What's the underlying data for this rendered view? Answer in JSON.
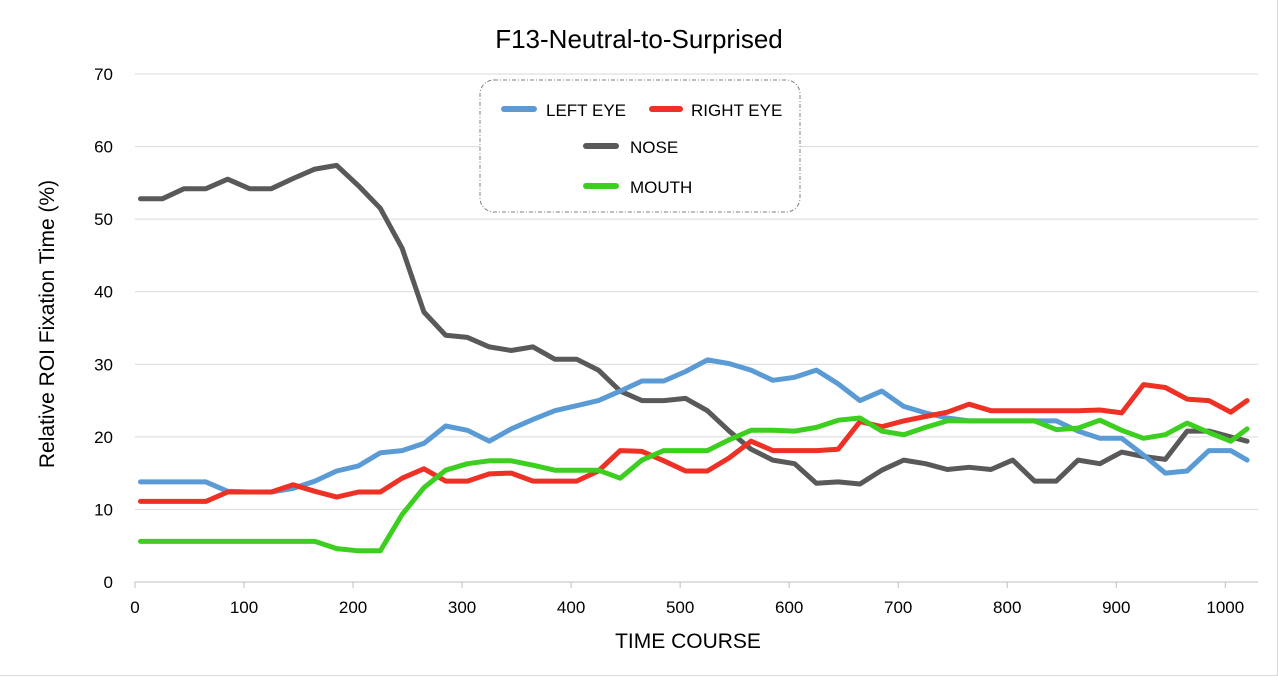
{
  "chart_data": {
    "type": "line",
    "title": "F13-Neutral-to-Surprised",
    "xlabel": "TIME  COURSE",
    "ylabel": "Relative  ROI  Fixation  Time  (%)",
    "xlim": [
      0,
      1030
    ],
    "ylim": [
      0,
      70
    ],
    "xticks": [
      0,
      100,
      200,
      300,
      400,
      500,
      600,
      700,
      800,
      900,
      1000
    ],
    "yticks": [
      0,
      10,
      20,
      30,
      40,
      50,
      60,
      70
    ],
    "grid": true,
    "legend_position": "top-center",
    "x": [
      5,
      25,
      45,
      65,
      85,
      105,
      125,
      145,
      165,
      185,
      205,
      225,
      245,
      265,
      285,
      305,
      325,
      345,
      365,
      385,
      405,
      425,
      445,
      465,
      485,
      505,
      525,
      545,
      565,
      585,
      605,
      625,
      645,
      665,
      685,
      705,
      725,
      745,
      765,
      785,
      805,
      825,
      845,
      865,
      885,
      905,
      925,
      945,
      965,
      985,
      1005,
      1020
    ],
    "series": [
      {
        "name": "LEFT EYE",
        "color": "#5b9bd5",
        "values": [
          13.8,
          13.8,
          13.8,
          13.8,
          12.5,
          12.4,
          12.4,
          12.9,
          13.9,
          15.3,
          16,
          17.8,
          18.1,
          19.1,
          21.5,
          20.9,
          19.4,
          21.1,
          22.4,
          23.6,
          24.3,
          25,
          26.3,
          27.7,
          27.7,
          29,
          30.6,
          30.1,
          29.2,
          27.8,
          28.2,
          29.2,
          27.3,
          25,
          26.3,
          24.2,
          23.3,
          22.6,
          22.2,
          22.2,
          22.2,
          22.2,
          22.2,
          20.8,
          19.8,
          19.8,
          17.5,
          15,
          15.3,
          18.1,
          18.1,
          16.8
        ]
      },
      {
        "name": "RIGHT EYE",
        "color": "#ee3124",
        "values": [
          11.1,
          11.1,
          11.1,
          11.1,
          12.4,
          12.4,
          12.4,
          13.4,
          12.5,
          11.7,
          12.4,
          12.4,
          14.3,
          15.6,
          13.9,
          13.9,
          14.9,
          15,
          13.9,
          13.9,
          13.9,
          15.3,
          18.1,
          18,
          16.7,
          15.3,
          15.3,
          17.1,
          19.4,
          18.1,
          18.1,
          18.1,
          18.3,
          22.1,
          21.4,
          22.2,
          22.8,
          23.4,
          24.5,
          23.6,
          23.6,
          23.6,
          23.6,
          23.6,
          23.7,
          23.3,
          27.2,
          26.8,
          25.2,
          25,
          23.4,
          25
        ]
      },
      {
        "name": "NOSE",
        "color": "#595959",
        "values": [
          52.8,
          52.8,
          54.2,
          54.2,
          55.5,
          54.2,
          54.2,
          55.6,
          56.9,
          57.4,
          54.6,
          51.5,
          46,
          37.2,
          34,
          33.7,
          32.4,
          31.9,
          32.4,
          30.7,
          30.7,
          29.2,
          26.3,
          25,
          25,
          25.3,
          23.6,
          20.8,
          18.3,
          16.8,
          16.3,
          13.6,
          13.8,
          13.5,
          15.4,
          16.8,
          16.3,
          15.5,
          15.8,
          15.5,
          16.8,
          13.9,
          13.9,
          16.8,
          16.3,
          17.9,
          17.3,
          16.9,
          20.8,
          20.8,
          20,
          19.4
        ]
      },
      {
        "name": "MOUTH",
        "color": "#3ccf1f",
        "values": [
          5.6,
          5.6,
          5.6,
          5.6,
          5.6,
          5.6,
          5.6,
          5.6,
          5.6,
          4.6,
          4.3,
          4.3,
          9.3,
          13,
          15.4,
          16.3,
          16.7,
          16.7,
          16.1,
          15.4,
          15.4,
          15.4,
          14.3,
          16.8,
          18.1,
          18.1,
          18.1,
          19.6,
          20.9,
          20.9,
          20.8,
          21.3,
          22.3,
          22.6,
          20.8,
          20.3,
          21.3,
          22.2,
          22.2,
          22.2,
          22.2,
          22.2,
          21,
          21.2,
          22.3,
          20.9,
          19.8,
          20.3,
          21.9,
          20.6,
          19.4,
          21.1
        ]
      }
    ]
  }
}
